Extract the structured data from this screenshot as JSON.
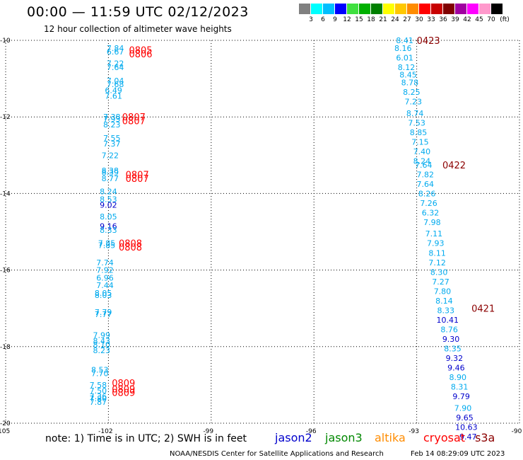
{
  "header": {
    "title": "00:00 — 11:59 UTC 02/12/2023",
    "subtitle": "12 hour collection of altimeter wave heights"
  },
  "colorbar": {
    "unit": "(ft)",
    "labels": [
      "3",
      "6",
      "9",
      "12",
      "15",
      "18",
      "21",
      "24",
      "27",
      "30",
      "33",
      "36",
      "39",
      "42",
      "45",
      "70"
    ],
    "colors": [
      "#808080",
      "#00ffff",
      "#00bfff",
      "#0000ff",
      "#40e040",
      "#00b000",
      "#008000",
      "#ffff00",
      "#ffc800",
      "#ff8c00",
      "#ff0000",
      "#c80000",
      "#800000",
      "#a000a0",
      "#ff00ff",
      "#ff99cc",
      "#000000"
    ]
  },
  "notes": {
    "main": "note: 1) Time is in UTC; 2) SWH is in feet",
    "sats": [
      {
        "name": "jason2",
        "color": "#0000cc"
      },
      {
        "name": "jason3",
        "color": "#008800"
      },
      {
        "name": "altika",
        "color": "#ff8c00"
      },
      {
        "name": "cryosat",
        "color": "#ff0000"
      },
      {
        "name": "s3a",
        "color": "#8b0000"
      }
    ]
  },
  "footer": {
    "credit": "NOAA/NESDIS Center for Satellite Applications and Research",
    "stamp": "Feb 14 08:29:09 UTC 2023"
  },
  "chart_data": {
    "type": "scatter",
    "xlim": [
      -105,
      -90
    ],
    "ylim": [
      -20,
      -10
    ],
    "xticks": [
      "-105",
      "-102",
      "-99",
      "-96",
      "-93",
      "-90"
    ],
    "yticks": [
      "-10",
      "-12",
      "-14",
      "-16",
      "-18",
      "-20"
    ],
    "grid": true,
    "series": [
      {
        "name": "jason3",
        "points": [
          {
            "lon": -101.8,
            "lat": -10.2,
            "v": "7.84",
            "c": "#00aaee"
          },
          {
            "lon": -101.8,
            "lat": -10.3,
            "v": "6.67",
            "c": "#00aaee"
          },
          {
            "lon": -101.8,
            "lat": -10.6,
            "v": "7.22",
            "c": "#00aaee"
          },
          {
            "lon": -101.8,
            "lat": -10.7,
            "v": "7.64",
            "c": "#00aaee"
          },
          {
            "lon": -101.8,
            "lat": -11.05,
            "v": "7.04",
            "c": "#00aaee"
          },
          {
            "lon": -101.8,
            "lat": -11.15,
            "v": "7.68",
            "c": "#00aaee"
          },
          {
            "lon": -101.85,
            "lat": -11.3,
            "v": "6.49",
            "c": "#00aaee"
          },
          {
            "lon": -101.85,
            "lat": -11.45,
            "v": "7.61",
            "c": "#00aaee"
          },
          {
            "lon": -101.9,
            "lat": -12.0,
            "v": "7.38",
            "c": "#00aaee"
          },
          {
            "lon": -101.9,
            "lat": -12.05,
            "v": "7.93",
            "c": "#00aaee"
          },
          {
            "lon": -101.9,
            "lat": -12.2,
            "v": "8.23",
            "c": "#00aaee"
          },
          {
            "lon": -101.9,
            "lat": -12.55,
            "v": "7.55",
            "c": "#00aaee"
          },
          {
            "lon": -101.9,
            "lat": -12.7,
            "v": "7.37",
            "c": "#00aaee"
          },
          {
            "lon": -101.95,
            "lat": -13.0,
            "v": "7.22",
            "c": "#00aaee"
          },
          {
            "lon": -101.95,
            "lat": -13.4,
            "v": "8.38",
            "c": "#00aaee"
          },
          {
            "lon": -101.95,
            "lat": -13.45,
            "v": "8.39",
            "c": "#00aaee"
          },
          {
            "lon": -101.95,
            "lat": -13.6,
            "v": "8.77",
            "c": "#00aaee"
          },
          {
            "lon": -102.0,
            "lat": -13.95,
            "v": "8.24",
            "c": "#00aaee"
          },
          {
            "lon": -102.0,
            "lat": -14.15,
            "v": "8.53",
            "c": "#00aaee"
          },
          {
            "lon": -102.0,
            "lat": -14.3,
            "v": "9.02",
            "c": "#0000cc"
          },
          {
            "lon": -102.0,
            "lat": -14.6,
            "v": "8.05",
            "c": "#00aaee"
          },
          {
            "lon": -102.0,
            "lat": -14.85,
            "v": "9.16",
            "c": "#0000cc"
          },
          {
            "lon": -102.0,
            "lat": -14.95,
            "v": "8.33",
            "c": "#00aaee"
          },
          {
            "lon": -102.05,
            "lat": -15.3,
            "v": "7.85",
            "c": "#00aaee"
          },
          {
            "lon": -102.05,
            "lat": -15.35,
            "v": "7.85",
            "c": "#00aaee"
          },
          {
            "lon": -102.1,
            "lat": -15.8,
            "v": "7.74",
            "c": "#00aaee"
          },
          {
            "lon": -102.1,
            "lat": -16.0,
            "v": "7.92",
            "c": "#00aaee"
          },
          {
            "lon": -102.1,
            "lat": -16.2,
            "v": "6.96",
            "c": "#00aaee"
          },
          {
            "lon": -102.1,
            "lat": -16.4,
            "v": "7.44",
            "c": "#00aaee"
          },
          {
            "lon": -102.15,
            "lat": -16.6,
            "v": "8.05",
            "c": "#00aaee"
          },
          {
            "lon": -102.15,
            "lat": -16.65,
            "v": "8.03",
            "c": "#00aaee"
          },
          {
            "lon": -102.15,
            "lat": -17.1,
            "v": "7.79",
            "c": "#00aaee"
          },
          {
            "lon": -102.15,
            "lat": -17.15,
            "v": "7.77",
            "c": "#00aaee"
          },
          {
            "lon": -102.2,
            "lat": -17.7,
            "v": "7.99",
            "c": "#00aaee"
          },
          {
            "lon": -102.2,
            "lat": -17.85,
            "v": "8.43",
            "c": "#00aaee"
          },
          {
            "lon": -102.2,
            "lat": -17.95,
            "v": "8.10",
            "c": "#00aaee"
          },
          {
            "lon": -102.2,
            "lat": -18.1,
            "v": "8.23",
            "c": "#00aaee"
          },
          {
            "lon": -102.25,
            "lat": -18.6,
            "v": "8.53",
            "c": "#00aaee"
          },
          {
            "lon": -102.25,
            "lat": -18.7,
            "v": "7.70",
            "c": "#00aaee"
          },
          {
            "lon": -102.3,
            "lat": -19.0,
            "v": "7.58",
            "c": "#00aaee"
          },
          {
            "lon": -102.3,
            "lat": -19.15,
            "v": "7.50",
            "c": "#00aaee"
          },
          {
            "lon": -102.3,
            "lat": -19.3,
            "v": "7.36",
            "c": "#00aaee"
          },
          {
            "lon": -102.3,
            "lat": -19.35,
            "v": "7.80",
            "c": "#00aaee"
          },
          {
            "lon": -102.3,
            "lat": -19.45,
            "v": "7.87",
            "c": "#00aaee"
          }
        ]
      },
      {
        "name": "s3a",
        "points": [
          {
            "lon": -93.35,
            "lat": -10.0,
            "v": "8.41",
            "c": "#00aaee"
          },
          {
            "lon": -93.4,
            "lat": -10.2,
            "v": "8.16",
            "c": "#00aaee"
          },
          {
            "lon": -93.35,
            "lat": -10.45,
            "v": "6.01",
            "c": "#00aaee"
          },
          {
            "lon": -93.3,
            "lat": -10.7,
            "v": "8.12",
            "c": "#00aaee"
          },
          {
            "lon": -93.25,
            "lat": -10.9,
            "v": "8.45",
            "c": "#00aaee"
          },
          {
            "lon": -93.2,
            "lat": -11.1,
            "v": "8.78",
            "c": "#00aaee"
          },
          {
            "lon": -93.15,
            "lat": -11.35,
            "v": "8.25",
            "c": "#00aaee"
          },
          {
            "lon": -93.1,
            "lat": -11.6,
            "v": "7.23",
            "c": "#00aaee"
          },
          {
            "lon": -93.05,
            "lat": -11.9,
            "v": "8.74",
            "c": "#00aaee"
          },
          {
            "lon": -93.0,
            "lat": -12.15,
            "v": "7.53",
            "c": "#00aaee"
          },
          {
            "lon": -92.95,
            "lat": -12.4,
            "v": "8.85",
            "c": "#00aaee"
          },
          {
            "lon": -92.9,
            "lat": -12.65,
            "v": "7.15",
            "c": "#00aaee"
          },
          {
            "lon": -92.85,
            "lat": -12.9,
            "v": "7.40",
            "c": "#00aaee"
          },
          {
            "lon": -92.85,
            "lat": -13.15,
            "v": "8.24",
            "c": "#00aaee"
          },
          {
            "lon": -92.8,
            "lat": -13.25,
            "v": "7.64",
            "c": "#00aaee"
          },
          {
            "lon": -92.75,
            "lat": -13.5,
            "v": "7.82",
            "c": "#00aaee"
          },
          {
            "lon": -92.75,
            "lat": -13.75,
            "v": "7.64",
            "c": "#00aaee"
          },
          {
            "lon": -92.7,
            "lat": -14.0,
            "v": "8.26",
            "c": "#00aaee"
          },
          {
            "lon": -92.65,
            "lat": -14.25,
            "v": "7.26",
            "c": "#00aaee"
          },
          {
            "lon": -92.6,
            "lat": -14.5,
            "v": "6.32",
            "c": "#00aaee"
          },
          {
            "lon": -92.55,
            "lat": -14.75,
            "v": "7.98",
            "c": "#00aaee"
          },
          {
            "lon": -92.5,
            "lat": -15.05,
            "v": "7.11",
            "c": "#00aaee"
          },
          {
            "lon": -92.45,
            "lat": -15.3,
            "v": "7.93",
            "c": "#00aaee"
          },
          {
            "lon": -92.4,
            "lat": -15.55,
            "v": "8.11",
            "c": "#00aaee"
          },
          {
            "lon": -92.4,
            "lat": -15.8,
            "v": "7.12",
            "c": "#00aaee"
          },
          {
            "lon": -92.35,
            "lat": -16.05,
            "v": "8.30",
            "c": "#00aaee"
          },
          {
            "lon": -92.3,
            "lat": -16.3,
            "v": "7.27",
            "c": "#00aaee"
          },
          {
            "lon": -92.25,
            "lat": -16.55,
            "v": "7.80",
            "c": "#00aaee"
          },
          {
            "lon": -92.2,
            "lat": -16.8,
            "v": "8.14",
            "c": "#00aaee"
          },
          {
            "lon": -92.15,
            "lat": -17.05,
            "v": "8.33",
            "c": "#00aaee"
          },
          {
            "lon": -92.1,
            "lat": -17.3,
            "v": "10.41",
            "c": "#0000cc"
          },
          {
            "lon": -92.05,
            "lat": -17.55,
            "v": "8.76",
            "c": "#00aaee"
          },
          {
            "lon": -92.0,
            "lat": -17.8,
            "v": "9.30",
            "c": "#0000cc"
          },
          {
            "lon": -91.95,
            "lat": -18.05,
            "v": "8.35",
            "c": "#00aaee"
          },
          {
            "lon": -91.9,
            "lat": -18.3,
            "v": "9.32",
            "c": "#0000cc"
          },
          {
            "lon": -91.85,
            "lat": -18.55,
            "v": "9.46",
            "c": "#0000cc"
          },
          {
            "lon": -91.8,
            "lat": -18.8,
            "v": "8.90",
            "c": "#00aaee"
          },
          {
            "lon": -91.75,
            "lat": -19.05,
            "v": "8.31",
            "c": "#00aaee"
          },
          {
            "lon": -91.7,
            "lat": -19.3,
            "v": "9.79",
            "c": "#0000cc"
          },
          {
            "lon": -91.65,
            "lat": -19.6,
            "v": "7.90",
            "c": "#00aaee"
          },
          {
            "lon": -91.6,
            "lat": -19.85,
            "v": "9.65",
            "c": "#0000cc"
          },
          {
            "lon": -91.55,
            "lat": -20.1,
            "v": "10.63",
            "c": "#0000cc"
          },
          {
            "lon": -91.5,
            "lat": -20.35,
            "v": "9.47",
            "c": "#0000cc"
          }
        ]
      }
    ],
    "annotations": [
      {
        "lon": -101.4,
        "lat": -10.25,
        "text": "0805",
        "c": "#ff0000"
      },
      {
        "lon": -101.4,
        "lat": -10.35,
        "text": "0806",
        "c": "#ff0000"
      },
      {
        "lon": -101.6,
        "lat": -12.0,
        "text": "0807",
        "c": "#ff0000"
      },
      {
        "lon": -101.6,
        "lat": -12.1,
        "text": "0807",
        "c": "#ff0000"
      },
      {
        "lon": -101.5,
        "lat": -13.5,
        "text": "0807",
        "c": "#ff0000"
      },
      {
        "lon": -101.5,
        "lat": -13.6,
        "text": "0807",
        "c": "#ff0000"
      },
      {
        "lon": -101.7,
        "lat": -15.3,
        "text": "0808",
        "c": "#ff0000"
      },
      {
        "lon": -101.7,
        "lat": -15.4,
        "text": "0808",
        "c": "#ff0000"
      },
      {
        "lon": -101.9,
        "lat": -18.95,
        "text": "0809",
        "c": "#ff0000"
      },
      {
        "lon": -101.9,
        "lat": -19.1,
        "text": "0809",
        "c": "#ff0000"
      },
      {
        "lon": -101.9,
        "lat": -19.2,
        "text": "0809",
        "c": "#ff0000"
      },
      {
        "lon": -93.0,
        "lat": -10.0,
        "text": "0423",
        "c": "#8b0000"
      },
      {
        "lon": -92.25,
        "lat": -13.25,
        "text": "0422",
        "c": "#8b0000"
      },
      {
        "lon": -91.4,
        "lat": -17.0,
        "text": "0421",
        "c": "#8b0000"
      }
    ]
  }
}
